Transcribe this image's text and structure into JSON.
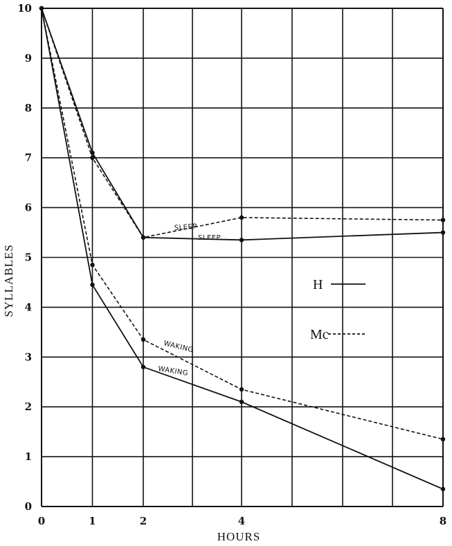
{
  "chart_data": {
    "type": "line",
    "xlabel": "HOURS",
    "ylabel": "SYLLABLES",
    "x_ticks": [
      "0",
      "1",
      "2",
      "4",
      "8"
    ],
    "y_ticks": [
      "0",
      "1",
      "2",
      "3",
      "4",
      "5",
      "6",
      "7",
      "8",
      "9",
      "10"
    ],
    "xlim": [
      0,
      8
    ],
    "ylim": [
      0,
      10
    ],
    "grid": true,
    "legend_position": "right",
    "legend": [
      {
        "label": "H",
        "style": "solid"
      },
      {
        "label": "Mc",
        "style": "dashed"
      }
    ],
    "series": [
      {
        "name": "H",
        "condition": "Sleep",
        "style": "solid",
        "x": [
          0,
          1,
          2,
          4,
          8
        ],
        "y": [
          10,
          7.1,
          5.4,
          5.35,
          5.5
        ]
      },
      {
        "name": "Mc",
        "condition": "Sleep",
        "style": "dashed",
        "x": [
          0,
          1,
          2,
          4,
          8
        ],
        "y": [
          10,
          7.0,
          5.4,
          5.8,
          5.75
        ]
      },
      {
        "name": "H",
        "condition": "Waking",
        "style": "solid",
        "x": [
          0,
          1,
          2,
          4,
          8
        ],
        "y": [
          10,
          4.45,
          2.8,
          2.1,
          0.35
        ]
      },
      {
        "name": "Mc",
        "condition": "Waking",
        "style": "dashed",
        "x": [
          0,
          1,
          2,
          4,
          8
        ],
        "y": [
          10,
          4.85,
          3.35,
          2.35,
          1.35
        ]
      }
    ],
    "annotations": [
      {
        "text": "SLEEP",
        "series": "Mc-sleep"
      },
      {
        "text": "SLEEP",
        "series": "H-sleep"
      },
      {
        "text": "WAKING",
        "series": "Mc-waking"
      },
      {
        "text": "WAKING",
        "series": "H-waking"
      }
    ],
    "colors": {
      "line": "#111111",
      "grid": "#111111",
      "background": "#ffffff"
    }
  }
}
